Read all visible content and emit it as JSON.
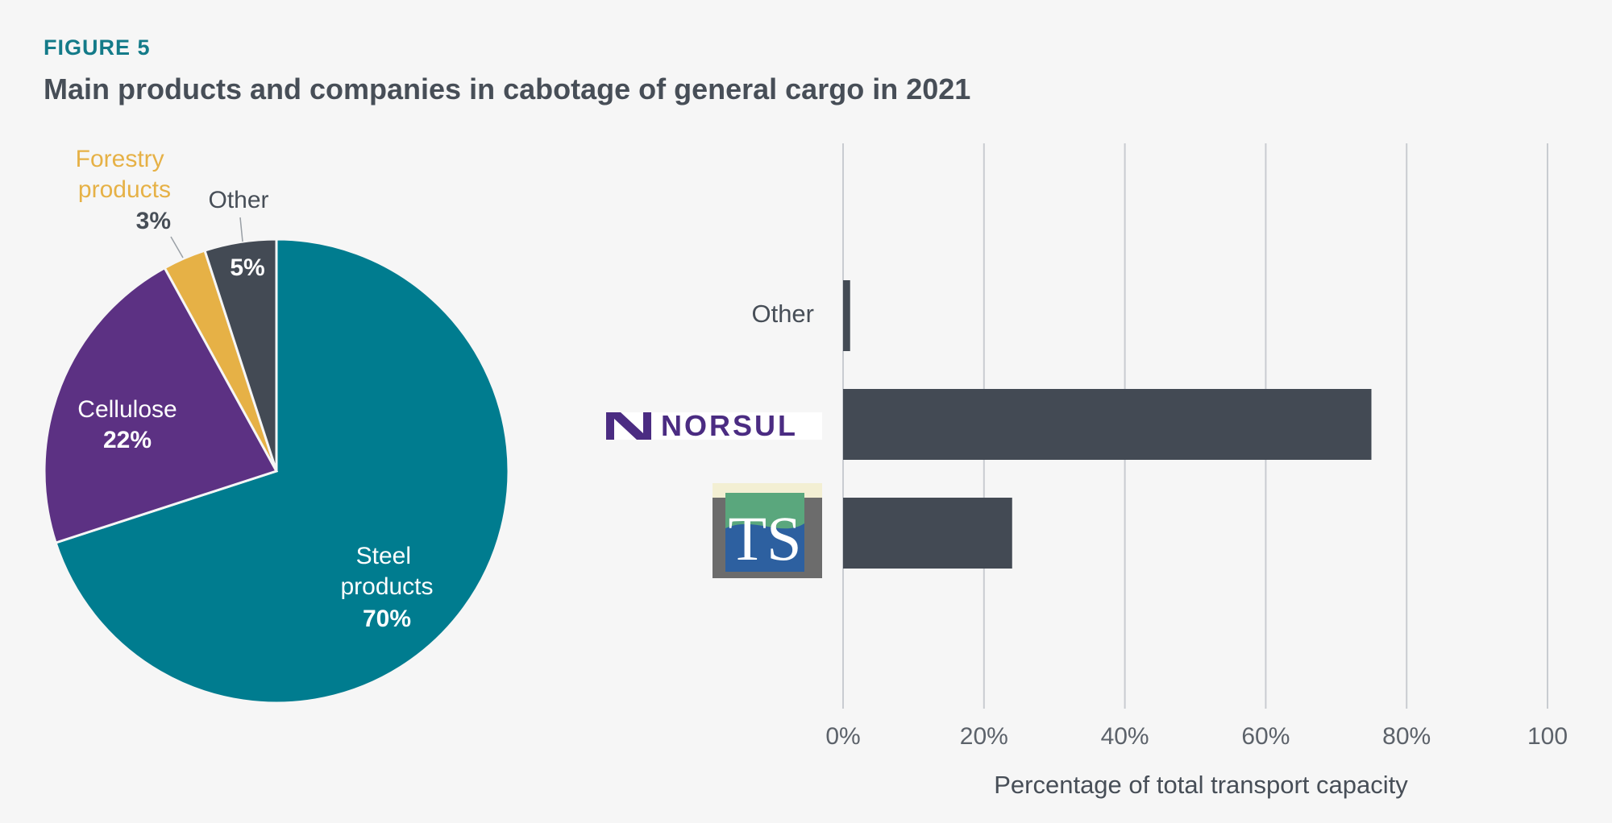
{
  "figure_label": "FIGURE 5",
  "title": "Main products and companies in cabotage of general cargo in 2021",
  "colors": {
    "steel": "#007c8f",
    "cellulose": "#5c3183",
    "forestry": "#e6b146",
    "other_slice": "#434a54",
    "bar": "#434a54",
    "grid": "#c9ccd1",
    "norsul": "#4b2c82"
  },
  "chart_data": [
    {
      "type": "pie",
      "slices": [
        {
          "label": "Steel products",
          "value": 70,
          "value_label": "70%"
        },
        {
          "label": "Cellulose",
          "value": 22,
          "value_label": "22%"
        },
        {
          "label": "Forestry products",
          "value": 3,
          "value_label": "3%"
        },
        {
          "label": "Other",
          "value": 5,
          "value_label": "5%"
        }
      ]
    },
    {
      "type": "bar",
      "orientation": "horizontal",
      "categories": [
        "Other",
        "NORSUL",
        "TS"
      ],
      "values": [
        1,
        75,
        24
      ],
      "xlabel": "Percentage of total transport capacity",
      "xlim": [
        0,
        100
      ],
      "xticks": [
        "0%",
        "20%",
        "40%",
        "60%",
        "80%",
        "100"
      ],
      "grid": true
    }
  ]
}
